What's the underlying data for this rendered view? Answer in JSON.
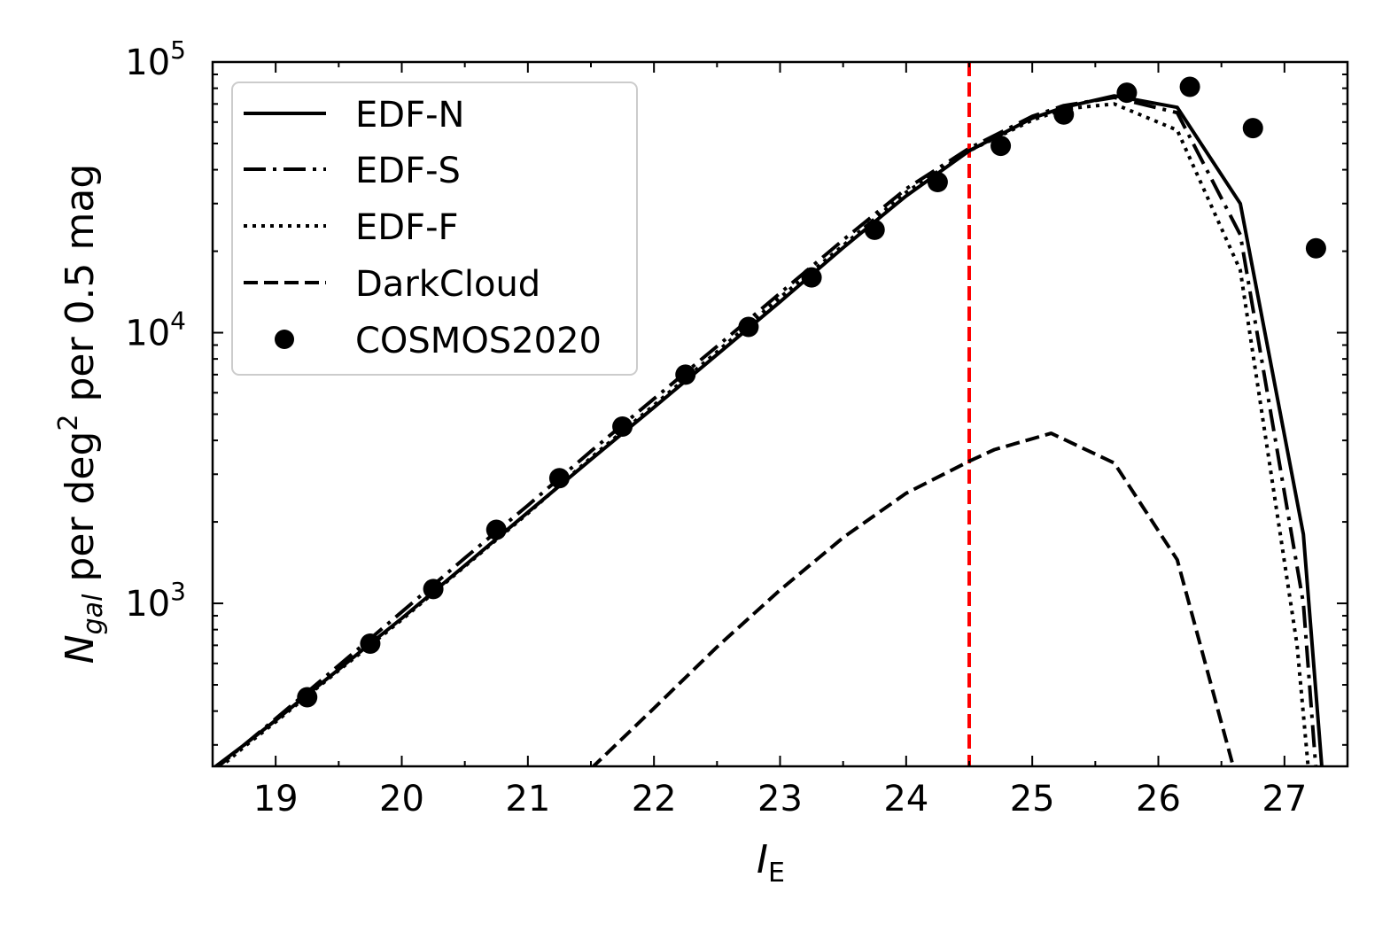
{
  "chart_data": {
    "type": "line",
    "xlabel": "I",
    "xlabel_sub": "E",
    "ylabel": "N",
    "ylabel_sub": "gal",
    "ylabel_rest": " per deg",
    "ylabel_sup": "2",
    "ylabel_tail": " per 0.5 mag",
    "xlim": [
      18.5,
      27.5
    ],
    "ylim": [
      250,
      100000
    ],
    "yscale": "log",
    "x_ticks": [
      19,
      20,
      21,
      22,
      23,
      24,
      25,
      26,
      27
    ],
    "x_tick_labels": [
      "19",
      "20",
      "21",
      "22",
      "23",
      "24",
      "25",
      "26",
      "27"
    ],
    "y_tick_base": "10",
    "y_tick_exps": [
      "3",
      "4",
      "5"
    ],
    "y_ticks": [
      1000,
      10000,
      100000
    ],
    "grid": false,
    "legend_position": "top-left",
    "vline": {
      "x": 24.5,
      "color": "#ff0000",
      "style": "dashed"
    },
    "series": [
      {
        "name": "EDF-N",
        "style": "solid",
        "color": "#000000",
        "x": [
          18.5,
          18.75,
          19.0,
          19.25,
          19.5,
          19.75,
          20.0,
          20.5,
          21.0,
          21.5,
          22.0,
          22.5,
          23.0,
          23.5,
          24.0,
          24.5,
          25.0,
          25.25,
          25.65,
          26.15,
          26.65,
          27.15,
          27.35
        ],
        "y": [
          245,
          300,
          370,
          460,
          570,
          710,
          880,
          1380,
          2170,
          3400,
          5300,
          8300,
          13000,
          20600,
          32000,
          47000,
          62000,
          68000,
          75000,
          68000,
          30000,
          1800,
          120
        ]
      },
      {
        "name": "EDF-S",
        "style": "dashdot",
        "color": "#000000",
        "x": [
          18.5,
          18.75,
          19.0,
          19.25,
          19.5,
          19.75,
          20.0,
          20.5,
          21.0,
          21.5,
          22.0,
          22.5,
          23.0,
          23.5,
          24.0,
          24.5,
          25.0,
          25.25,
          25.65,
          26.15,
          26.65,
          27.15,
          27.3
        ],
        "y": [
          240,
          300,
          375,
          470,
          590,
          740,
          930,
          1470,
          2300,
          3650,
          5700,
          8900,
          14000,
          22000,
          34000,
          48000,
          63000,
          69000,
          74000,
          65000,
          23000,
          1000,
          120
        ]
      },
      {
        "name": "EDF-F",
        "style": "dotted",
        "color": "#000000",
        "x": [
          18.5,
          18.75,
          19.0,
          19.25,
          19.5,
          19.75,
          20.0,
          20.5,
          21.0,
          21.5,
          22.0,
          22.5,
          23.0,
          23.5,
          24.0,
          24.5,
          25.0,
          25.25,
          25.65,
          26.15,
          26.65,
          27.1,
          27.25
        ],
        "y": [
          235,
          295,
          365,
          455,
          565,
          700,
          870,
          1370,
          2150,
          3450,
          5400,
          8500,
          13500,
          21000,
          33000,
          47000,
          61000,
          67000,
          70000,
          56000,
          17000,
          700,
          120
        ]
      },
      {
        "name": "DarkCloud",
        "style": "dashed",
        "color": "#000000",
        "x": [
          21.5,
          22.0,
          22.5,
          23.0,
          23.5,
          24.0,
          24.5,
          24.7,
          25.15,
          25.65,
          26.15,
          26.65
        ],
        "y": [
          245,
          410,
          690,
          1120,
          1750,
          2550,
          3350,
          3700,
          4250,
          3300,
          1450,
          200
        ]
      },
      {
        "name": "COSMOS2020",
        "style": "markers",
        "color": "#000000",
        "x": [
          19.25,
          19.75,
          20.25,
          20.75,
          21.25,
          21.75,
          22.25,
          22.75,
          23.25,
          23.75,
          24.25,
          24.75,
          25.25,
          25.75,
          26.25,
          26.75,
          27.25
        ],
        "y": [
          450,
          710,
          1130,
          1870,
          2900,
          4500,
          7000,
          10500,
          16000,
          24000,
          36000,
          49000,
          64000,
          77000,
          81000,
          57000,
          20500
        ]
      }
    ]
  }
}
